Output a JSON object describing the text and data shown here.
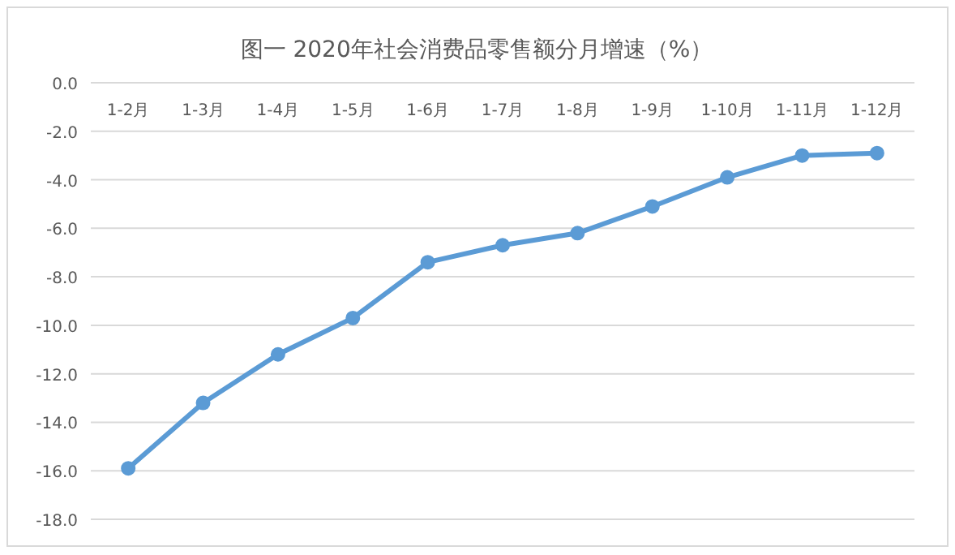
{
  "chart_data": {
    "type": "line",
    "title": "图一 2020年社会消费品零售额分月增速（%）",
    "categories": [
      "1-2月",
      "1-3月",
      "1-4月",
      "1-5月",
      "1-6月",
      "1-7月",
      "1-8月",
      "1-9月",
      "1-10月",
      "1-11月",
      "1-12月"
    ],
    "series": [
      {
        "color": "#5b9bd5",
        "values": [
          -15.9,
          -13.2,
          -11.2,
          -9.7,
          -7.4,
          -6.7,
          -6.2,
          -5.1,
          -3.9,
          -3.0,
          -2.9
        ]
      }
    ],
    "ylim": [
      -18,
      0
    ],
    "yticks": [
      {
        "value": 0,
        "label": "0.0"
      },
      {
        "value": -2,
        "label": "-2.0"
      },
      {
        "value": -4,
        "label": "-4.0"
      },
      {
        "value": -6,
        "label": "-6.0"
      },
      {
        "value": -8,
        "label": "-8.0"
      },
      {
        "value": -10,
        "label": "-10.0"
      },
      {
        "value": -12,
        "label": "-12.0"
      },
      {
        "value": -14,
        "label": "-14.0"
      },
      {
        "value": -16,
        "label": "-16.0"
      },
      {
        "value": -18,
        "label": "-18.0"
      }
    ],
    "grid": "y",
    "marker": "circle",
    "line_style": "solid"
  }
}
